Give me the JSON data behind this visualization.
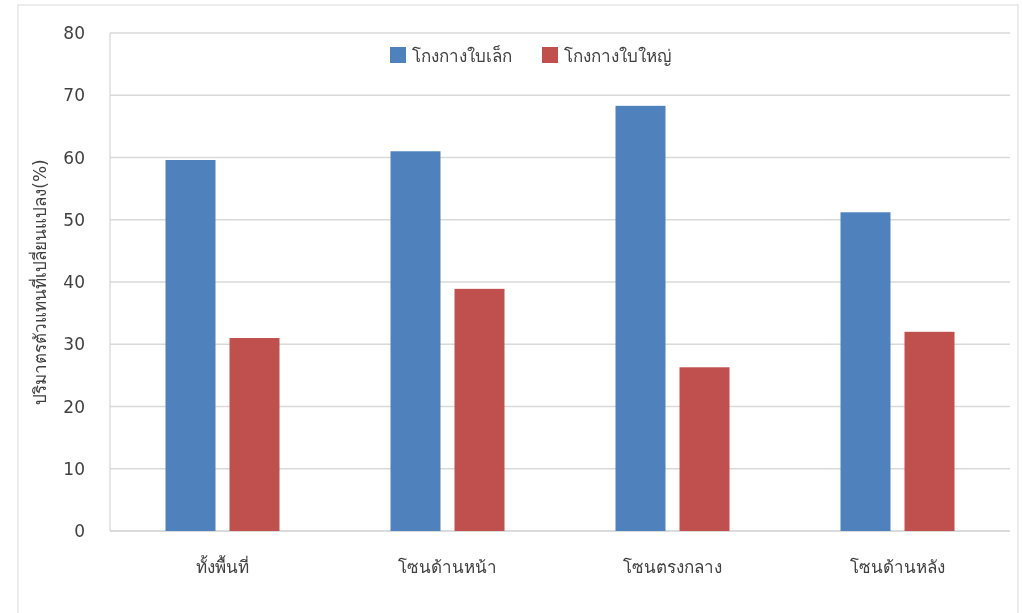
{
  "chart_data": {
    "type": "bar",
    "ylabel": "ปริมาตรตัวแทนที่เปลี่ยนแปลง(%)",
    "categories": [
      "ทั้งพื้นที่",
      "โซนด้านหน้า",
      "โซนตรงกลาง",
      "โซนด้านหลัง"
    ],
    "series": [
      {
        "name": "โกงกางใบเล็ก",
        "color": "#4f81bd",
        "values": [
          59.6,
          61.0,
          68.3,
          51.2
        ]
      },
      {
        "name": "โกงกางใบใหญ่",
        "color": "#c0504d",
        "values": [
          31.0,
          38.9,
          26.3,
          32.0
        ]
      }
    ],
    "ylim": [
      0,
      80
    ],
    "yticks": [
      0,
      10,
      20,
      30,
      40,
      50,
      60,
      70,
      80
    ],
    "grid": "y",
    "legend": "top"
  }
}
